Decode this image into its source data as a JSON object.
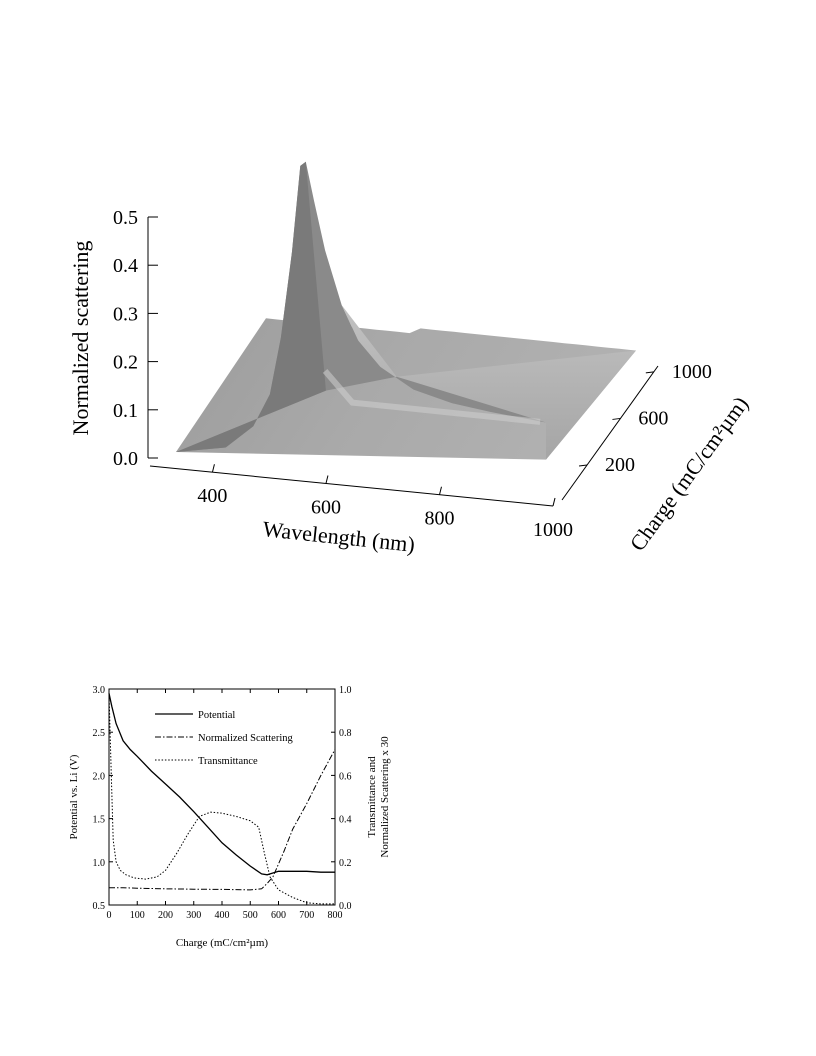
{
  "chart_data": [
    {
      "type": "surface",
      "xlabel": "Wavelength (nm)",
      "ylabel": "Charge (mC/cm²µm)",
      "zlabel": "Normalized scattering",
      "x_ticks": [
        400,
        600,
        800,
        1000
      ],
      "y_ticks": [
        200,
        600,
        1000
      ],
      "z_ticks": [
        "0.0",
        "0.1",
        "0.2",
        "0.3",
        "0.4",
        "0.5"
      ],
      "xlim": [
        330,
        1000
      ],
      "ylim": [
        0,
        1100
      ],
      "zlim": [
        0,
        0.5
      ],
      "peak": {
        "wavelength": 560,
        "charge": 0,
        "value": 0.63
      },
      "ridge_at_charge_0": {
        "wavelength": [
          330,
          420,
          470,
          500,
          520,
          540,
          555,
          565,
          580,
          600,
          630,
          660,
          700,
          760,
          830,
          900,
          1000
        ],
        "value": [
          0.0,
          0.02,
          0.07,
          0.14,
          0.26,
          0.44,
          0.62,
          0.63,
          0.55,
          0.45,
          0.34,
          0.27,
          0.22,
          0.18,
          0.16,
          0.15,
          0.14
        ]
      },
      "high_charge_plateau_value": 0.03
    },
    {
      "type": "line",
      "xlabel": "Charge (mC/cm²µm)",
      "ylabel_left": "Potential vs. Li (V)",
      "ylabel_right_line1": "Transmittance and",
      "ylabel_right_line2": "Normalized Scattering x 30",
      "xlim": [
        0,
        800
      ],
      "ylim_left": [
        0.5,
        3.0
      ],
      "ylim_right": [
        0.0,
        1.0
      ],
      "x_ticks": [
        "0",
        "100",
        "200",
        "300",
        "400",
        "500",
        "600",
        "700",
        "800"
      ],
      "y_ticks_left": [
        "0.5",
        "1.0",
        "1.5",
        "2.0",
        "2.5",
        "3.0"
      ],
      "y_ticks_right": [
        "0.0",
        "0.2",
        "0.4",
        "0.6",
        "0.8",
        "1.0"
      ],
      "legend_position": "top-center",
      "series": [
        {
          "name": "Potential",
          "axis": "left",
          "style": "solid",
          "x": [
            0,
            10,
            25,
            50,
            75,
            100,
            150,
            200,
            250,
            300,
            350,
            400,
            450,
            500,
            540,
            560,
            580,
            600,
            650,
            700,
            750,
            800
          ],
          "y": [
            2.95,
            2.8,
            2.6,
            2.4,
            2.3,
            2.22,
            2.05,
            1.9,
            1.75,
            1.58,
            1.4,
            1.22,
            1.08,
            0.95,
            0.86,
            0.85,
            0.87,
            0.89,
            0.89,
            0.89,
            0.88,
            0.88
          ]
        },
        {
          "name": "Normalized Scattering",
          "axis": "right",
          "style": "dash-dot",
          "x": [
            0,
            50,
            100,
            200,
            300,
            400,
            500,
            540,
            560,
            580,
            600,
            620,
            650,
            700,
            750,
            800
          ],
          "y": [
            0.08,
            0.08,
            0.078,
            0.075,
            0.073,
            0.072,
            0.07,
            0.075,
            0.1,
            0.13,
            0.19,
            0.25,
            0.35,
            0.47,
            0.6,
            0.72
          ]
        },
        {
          "name": "Transmittance",
          "axis": "right",
          "style": "dotted",
          "x": [
            0,
            8,
            15,
            25,
            40,
            60,
            90,
            130,
            170,
            200,
            240,
            280,
            320,
            360,
            400,
            450,
            500,
            530,
            550,
            570,
            600,
            650,
            700,
            750,
            800
          ],
          "y": [
            0.98,
            0.6,
            0.3,
            0.2,
            0.16,
            0.14,
            0.125,
            0.12,
            0.13,
            0.16,
            0.24,
            0.33,
            0.41,
            0.43,
            0.425,
            0.41,
            0.39,
            0.36,
            0.24,
            0.13,
            0.07,
            0.035,
            0.01,
            0.005,
            0.005
          ]
        }
      ]
    }
  ]
}
